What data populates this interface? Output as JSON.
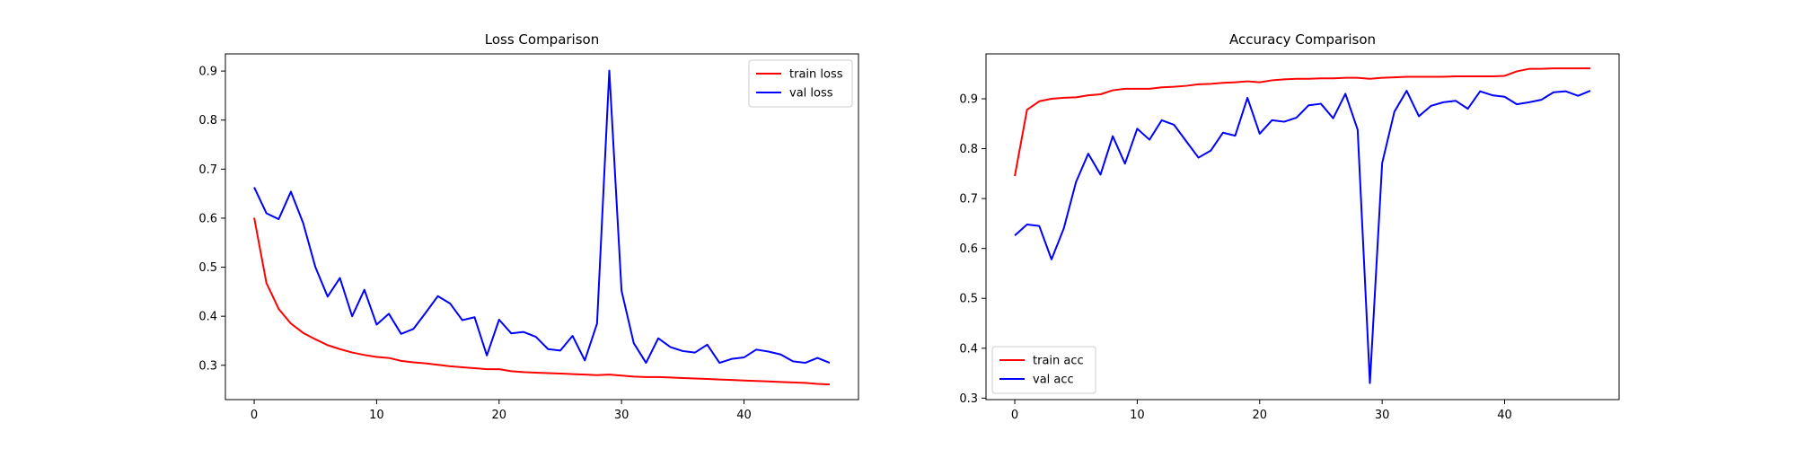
{
  "chart_data": [
    {
      "type": "line",
      "title": "Loss Comparison",
      "xlabel": "",
      "ylabel": "",
      "xlim": [
        -2.35,
        49.35
      ],
      "ylim": [
        0.23,
        0.935
      ],
      "xticks": [
        0,
        10,
        20,
        30,
        40
      ],
      "yticks": [
        0.3,
        0.4,
        0.5,
        0.6,
        0.7,
        0.8,
        0.9
      ],
      "ytick_labels": [
        "0.3",
        "0.4",
        "0.5",
        "0.6",
        "0.7",
        "0.8",
        "0.9"
      ],
      "grid": false,
      "legend_position": "top-right",
      "series": [
        {
          "name": "train loss",
          "color": "#ff0000",
          "x": [
            0,
            1,
            2,
            3,
            4,
            5,
            6,
            7,
            8,
            9,
            10,
            11,
            12,
            13,
            14,
            15,
            16,
            17,
            18,
            19,
            20,
            21,
            22,
            23,
            24,
            25,
            26,
            27,
            28,
            29,
            30,
            31,
            32,
            33,
            34,
            35,
            36,
            37,
            38,
            39,
            40,
            41,
            42,
            43,
            44,
            45,
            46,
            47
          ],
          "values": [
            0.601,
            0.468,
            0.415,
            0.385,
            0.366,
            0.353,
            0.341,
            0.333,
            0.326,
            0.321,
            0.317,
            0.315,
            0.309,
            0.306,
            0.304,
            0.301,
            0.298,
            0.296,
            0.294,
            0.292,
            0.292,
            0.288,
            0.286,
            0.285,
            0.284,
            0.283,
            0.282,
            0.281,
            0.28,
            0.281,
            0.279,
            0.277,
            0.276,
            0.276,
            0.275,
            0.274,
            0.273,
            0.272,
            0.271,
            0.27,
            0.269,
            0.268,
            0.267,
            0.266,
            0.265,
            0.264,
            0.262,
            0.261
          ]
        },
        {
          "name": "val loss",
          "color": "#0000ff",
          "x": [
            0,
            1,
            2,
            3,
            4,
            5,
            6,
            7,
            8,
            9,
            10,
            11,
            12,
            13,
            14,
            15,
            16,
            17,
            18,
            19,
            20,
            21,
            22,
            23,
            24,
            25,
            26,
            27,
            28,
            29,
            30,
            31,
            32,
            33,
            34,
            35,
            36,
            37,
            38,
            39,
            40,
            41,
            42,
            43,
            44,
            45,
            46,
            47
          ],
          "values": [
            0.663,
            0.61,
            0.598,
            0.654,
            0.59,
            0.5,
            0.44,
            0.478,
            0.4,
            0.454,
            0.383,
            0.405,
            0.364,
            0.374,
            0.407,
            0.441,
            0.426,
            0.392,
            0.398,
            0.32,
            0.393,
            0.365,
            0.368,
            0.358,
            0.333,
            0.33,
            0.36,
            0.31,
            0.385,
            0.901,
            0.452,
            0.345,
            0.305,
            0.355,
            0.337,
            0.329,
            0.326,
            0.342,
            0.305,
            0.313,
            0.316,
            0.332,
            0.328,
            0.322,
            0.308,
            0.305,
            0.315,
            0.305
          ]
        }
      ]
    },
    {
      "type": "line",
      "title": "Accuracy Comparison",
      "xlabel": "",
      "ylabel": "",
      "xlim": [
        -2.35,
        49.35
      ],
      "ylim": [
        0.297,
        0.99
      ],
      "xticks": [
        0,
        10,
        20,
        30,
        40
      ],
      "yticks": [
        0.3,
        0.4,
        0.5,
        0.6,
        0.7,
        0.8,
        0.9
      ],
      "ytick_labels": [
        "0.3",
        "0.4",
        "0.5",
        "0.6",
        "0.7",
        "0.8",
        "0.9"
      ],
      "grid": false,
      "legend_position": "bottom-left",
      "series": [
        {
          "name": "train acc",
          "color": "#ff0000",
          "x": [
            0,
            1,
            2,
            3,
            4,
            5,
            6,
            7,
            8,
            9,
            10,
            11,
            12,
            13,
            14,
            15,
            16,
            17,
            18,
            19,
            20,
            21,
            22,
            23,
            24,
            25,
            26,
            27,
            28,
            29,
            30,
            31,
            32,
            33,
            34,
            35,
            36,
            37,
            38,
            39,
            40,
            41,
            42,
            43,
            44,
            45,
            46,
            47
          ],
          "values": [
            0.745,
            0.878,
            0.895,
            0.9,
            0.902,
            0.903,
            0.907,
            0.909,
            0.917,
            0.92,
            0.92,
            0.92,
            0.923,
            0.924,
            0.926,
            0.929,
            0.93,
            0.932,
            0.933,
            0.935,
            0.933,
            0.937,
            0.939,
            0.94,
            0.94,
            0.941,
            0.941,
            0.942,
            0.942,
            0.94,
            0.942,
            0.943,
            0.944,
            0.944,
            0.944,
            0.944,
            0.945,
            0.945,
            0.945,
            0.945,
            0.946,
            0.955,
            0.96,
            0.96,
            0.961,
            0.961,
            0.961,
            0.961
          ]
        },
        {
          "name": "val acc",
          "color": "#0000ff",
          "x": [
            0,
            1,
            2,
            3,
            4,
            5,
            6,
            7,
            8,
            9,
            10,
            11,
            12,
            13,
            14,
            15,
            16,
            17,
            18,
            19,
            20,
            21,
            22,
            23,
            24,
            25,
            26,
            27,
            28,
            29,
            30,
            31,
            32,
            33,
            34,
            35,
            36,
            37,
            38,
            39,
            40,
            41,
            42,
            43,
            44,
            45,
            46,
            47
          ],
          "values": [
            0.626,
            0.648,
            0.645,
            0.578,
            0.64,
            0.733,
            0.79,
            0.748,
            0.825,
            0.77,
            0.84,
            0.818,
            0.857,
            0.848,
            0.815,
            0.782,
            0.796,
            0.832,
            0.826,
            0.902,
            0.83,
            0.857,
            0.854,
            0.862,
            0.887,
            0.89,
            0.861,
            0.91,
            0.838,
            0.33,
            0.771,
            0.874,
            0.916,
            0.865,
            0.886,
            0.893,
            0.896,
            0.88,
            0.915,
            0.907,
            0.904,
            0.889,
            0.893,
            0.898,
            0.913,
            0.915,
            0.906,
            0.916
          ]
        }
      ]
    }
  ]
}
